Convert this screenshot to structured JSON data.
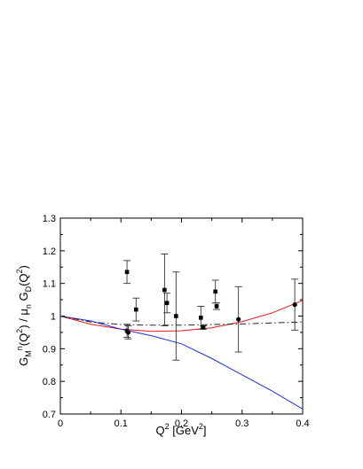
{
  "chart_data": {
    "type": "scatter",
    "title": "",
    "xlabel": "Q² [GeV²]",
    "ylabel": "G_Mⁿ(Q²) / μ_n G_D(Q²)",
    "xlim": [
      0,
      0.4
    ],
    "ylim": [
      0.7,
      1.3
    ],
    "grid": false,
    "x_ticks": [
      0,
      0.1,
      0.2,
      0.3,
      0.4
    ],
    "x_tick_labels": [
      "0",
      "0.1",
      "0.2",
      "0.3",
      "0.4"
    ],
    "y_ticks": [
      0.7,
      0.8,
      0.9,
      1.0,
      1.1,
      1.2,
      1.3
    ],
    "y_tick_labels": [
      "0.7",
      "0.8",
      "0.9",
      "1",
      "1.1",
      "1.2",
      "1.3"
    ],
    "series": [
      {
        "kind": "points",
        "marker": "square",
        "points": [
          {
            "x": 0.11,
            "y": 1.135,
            "err": 0.035
          },
          {
            "x": 0.11,
            "y": 0.955,
            "err": 0.02
          },
          {
            "x": 0.125,
            "y": 1.02,
            "err": 0.035
          },
          {
            "x": 0.172,
            "y": 1.08,
            "err": 0.11
          },
          {
            "x": 0.176,
            "y": 1.04,
            "err": 0.03
          },
          {
            "x": 0.191,
            "y": 1.0,
            "err": 0.135
          },
          {
            "x": 0.232,
            "y": 0.995,
            "err": 0.035
          },
          {
            "x": 0.236,
            "y": 0.965,
            "err": 0.005
          },
          {
            "x": 0.256,
            "y": 1.075,
            "err": 0.035
          },
          {
            "x": 0.258,
            "y": 1.03,
            "err": 0.01
          }
        ]
      },
      {
        "kind": "points",
        "marker": "circle",
        "points": [
          {
            "x": 0.112,
            "y": 0.95,
            "err": 0.02
          },
          {
            "x": 0.294,
            "y": 0.99,
            "err": 0.1
          },
          {
            "x": 0.387,
            "y": 1.035,
            "err": 0.078
          }
        ]
      },
      {
        "kind": "line",
        "style": "solid",
        "color": "#e8141e",
        "x": [
          0,
          0.05,
          0.1,
          0.15,
          0.2,
          0.25,
          0.3,
          0.35,
          0.4
        ],
        "y": [
          1.0,
          0.975,
          0.96,
          0.953,
          0.955,
          0.964,
          0.983,
          1.01,
          1.048
        ]
      },
      {
        "kind": "line",
        "style": "solid",
        "color": "#1e2ee6",
        "x": [
          0,
          0.05,
          0.1,
          0.15,
          0.2,
          0.25,
          0.3,
          0.35,
          0.4
        ],
        "y": [
          1.0,
          0.985,
          0.96,
          0.94,
          0.915,
          0.87,
          0.82,
          0.77,
          0.715
        ]
      },
      {
        "kind": "line",
        "style": "dash-dot",
        "color": "#222222",
        "x": [
          0,
          0.05,
          0.1,
          0.15,
          0.2,
          0.25,
          0.3,
          0.35,
          0.4
        ],
        "y": [
          1.0,
          0.982,
          0.974,
          0.972,
          0.972,
          0.974,
          0.976,
          0.979,
          0.982
        ]
      }
    ]
  }
}
